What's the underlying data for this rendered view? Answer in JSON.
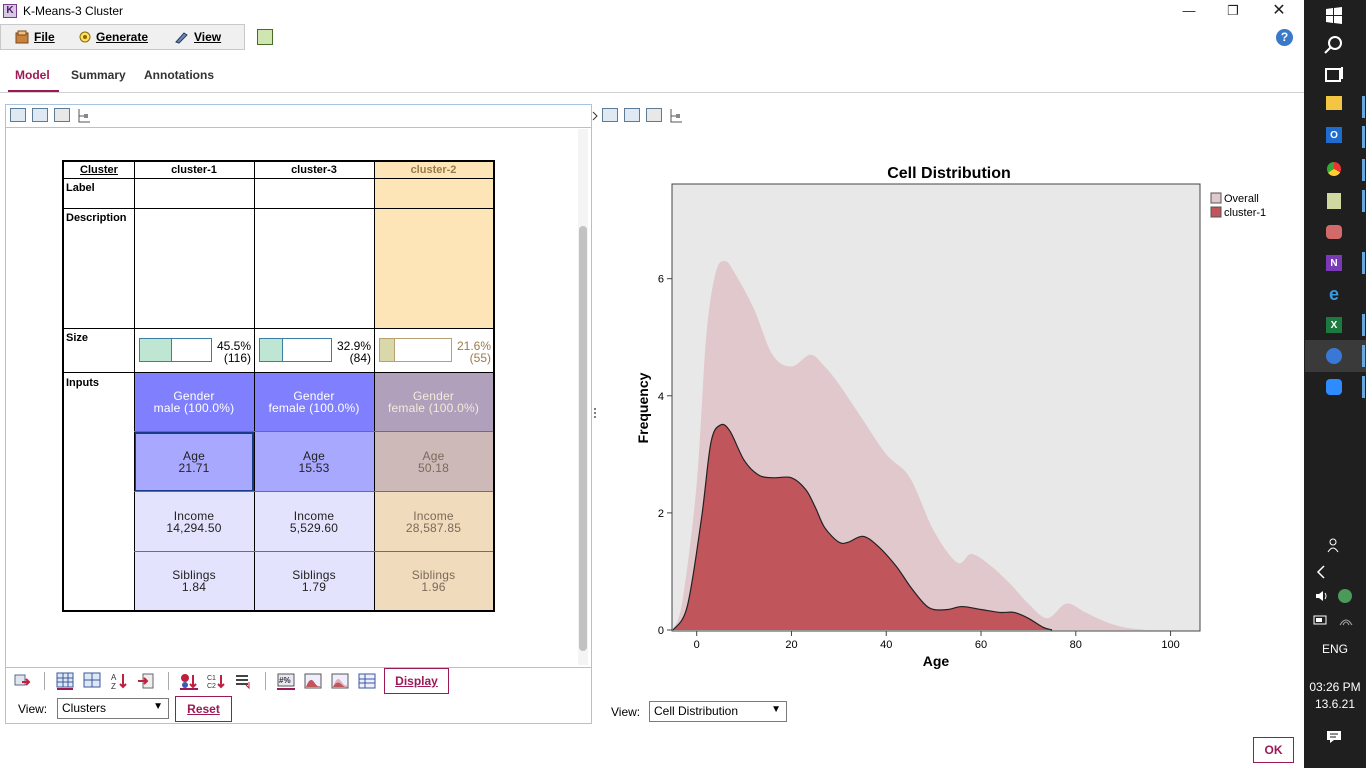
{
  "window": {
    "title": "K-Means-3 Cluster",
    "app_icon_letter": "K"
  },
  "menu": {
    "file": "File",
    "generate": "Generate",
    "view": "View"
  },
  "tabs": [
    "Model",
    "Summary",
    "Annotations"
  ],
  "cluster_table": {
    "header_label": "Cluster",
    "row_labels": {
      "label": "Label",
      "description": "Description",
      "size": "Size",
      "inputs": "Inputs"
    },
    "clusters": [
      {
        "name": "cluster-1",
        "size_pct": "45.5%",
        "size_count": "(116)",
        "size_fraction": 0.455,
        "gender": [
          "Gender",
          "male (100.0%)"
        ],
        "age": [
          "Age",
          "21.71"
        ],
        "income": [
          "Income",
          "14,294.50"
        ],
        "siblings": [
          "Siblings",
          "1.84"
        ]
      },
      {
        "name": "cluster-3",
        "size_pct": "32.9%",
        "size_count": "(84)",
        "size_fraction": 0.329,
        "gender": [
          "Gender",
          "female (100.0%)"
        ],
        "age": [
          "Age",
          "15.53"
        ],
        "income": [
          "Income",
          "5,529.60"
        ],
        "siblings": [
          "Siblings",
          "1.79"
        ]
      },
      {
        "name": "cluster-2",
        "size_pct": "21.6%",
        "size_count": "(55)",
        "size_fraction": 0.216,
        "gender": [
          "Gender",
          "female (100.0%)"
        ],
        "age": [
          "Age",
          "50.18"
        ],
        "income": [
          "Income",
          "28,587.85"
        ],
        "siblings": [
          "Siblings",
          "1.96"
        ]
      }
    ]
  },
  "left_controls": {
    "display_button": "Display",
    "view_label": "View:",
    "view_value": "Clusters",
    "reset_button": "Reset"
  },
  "right_controls": {
    "view_label": "View:",
    "view_value": "Cell Distribution"
  },
  "ok_button": "OK",
  "chart_data": {
    "type": "area",
    "title": "Cell Distribution",
    "xlabel": "Age",
    "ylabel": "Frequency",
    "xlim": [
      -5,
      106
    ],
    "ylim": [
      0,
      7.6
    ],
    "x_ticks": [
      0,
      20,
      40,
      60,
      80,
      100
    ],
    "y_ticks": [
      0,
      2,
      4,
      6
    ],
    "legend_position": "top-right",
    "series": [
      {
        "name": "Overall",
        "color": "#e0c8cc",
        "x": [
          -5,
          -3,
          0,
          2,
          4,
          6,
          8,
          12,
          16,
          20,
          24,
          27,
          30,
          35,
          40,
          45,
          50,
          55,
          58,
          62,
          66,
          70,
          74,
          78,
          82,
          86,
          90,
          95
        ],
        "y": [
          0,
          0.5,
          2.5,
          5.0,
          6.1,
          6.3,
          6.1,
          5.5,
          4.7,
          4.5,
          4.7,
          4.5,
          4.2,
          3.6,
          3.0,
          2.6,
          1.7,
          1.15,
          1.3,
          1.1,
          0.8,
          0.45,
          0.2,
          0.45,
          0.3,
          0.15,
          0.05,
          0
        ]
      },
      {
        "name": "cluster-1",
        "color": "#c0555b",
        "x": [
          -5,
          -2,
          1,
          3,
          5,
          7,
          10,
          13,
          16,
          20,
          23,
          25,
          27,
          30,
          32,
          35,
          38,
          42,
          45,
          48,
          50,
          53,
          56,
          60,
          64,
          67,
          70,
          73,
          75
        ],
        "y": [
          0,
          0.4,
          1.9,
          3.2,
          3.5,
          3.4,
          2.9,
          2.65,
          2.6,
          2.6,
          2.4,
          2.1,
          1.75,
          1.5,
          1.5,
          1.6,
          1.45,
          1.1,
          0.75,
          0.45,
          0.35,
          0.35,
          0.4,
          0.35,
          0.3,
          0.3,
          0.2,
          0.05,
          0
        ]
      }
    ]
  },
  "icons": {
    "right_toolbar": [
      "chart-icon",
      "copy-icon",
      "print-icon",
      "tree-icon"
    ],
    "left_toolbar": [
      "chart-icon",
      "copy-icon",
      "print-icon",
      "tree-icon"
    ],
    "taskbar": [
      "windows-start-icon",
      "search-icon",
      "task-view-icon",
      "file-explorer-icon",
      "outlook-icon",
      "chrome-icon",
      "notepad-icon",
      "paint-icon",
      "onenote-icon",
      "edge-icon",
      "excel-icon",
      "vpn-icon",
      "zoom-icon"
    ]
  },
  "system_tray": {
    "language": "ENG",
    "time": "03:26 PM",
    "date": "13.6.21"
  }
}
